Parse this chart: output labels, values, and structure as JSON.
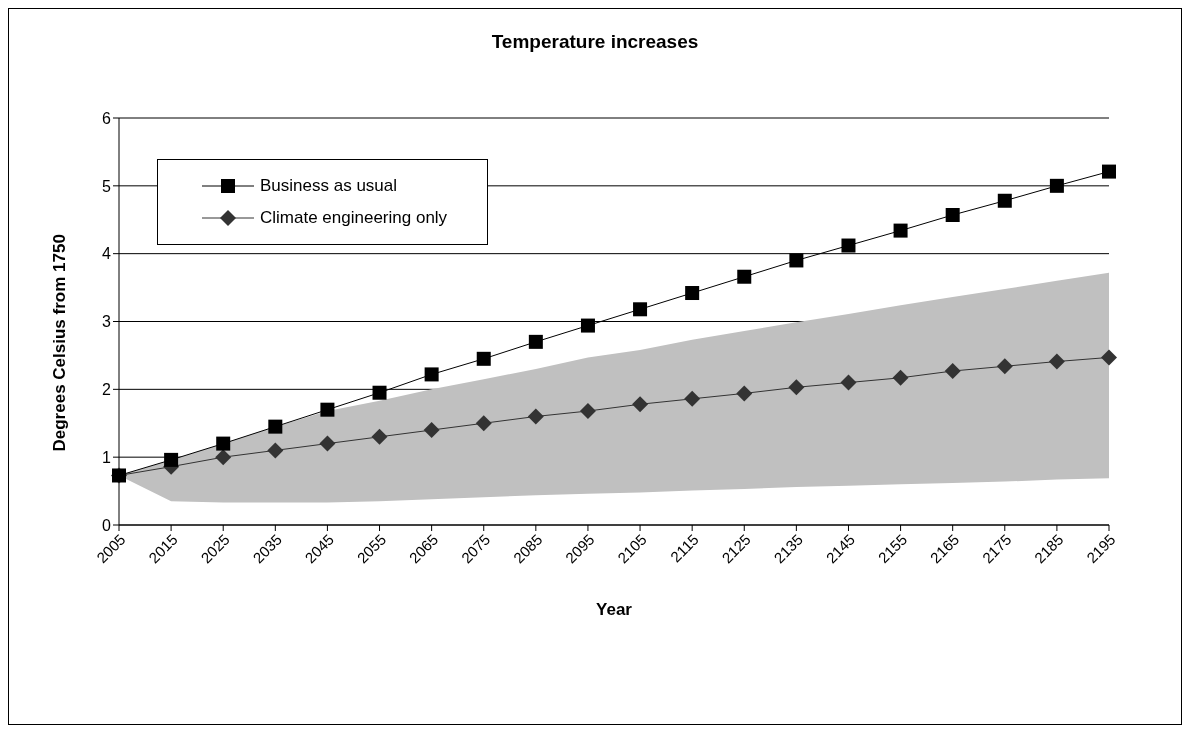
{
  "chart_data": {
    "type": "line",
    "title": "Temperature increases",
    "xlabel": "Year",
    "ylabel": "Degrees Celsius from 1750",
    "categories": [
      "2005",
      "2015",
      "2025",
      "2035",
      "2045",
      "2055",
      "2065",
      "2075",
      "2085",
      "2095",
      "2105",
      "2115",
      "2125",
      "2135",
      "2145",
      "2155",
      "2165",
      "2175",
      "2185",
      "2195"
    ],
    "series": [
      {
        "name": "Business as usual",
        "color": "#000000",
        "marker": "square",
        "values": [
          0.73,
          0.96,
          1.2,
          1.45,
          1.7,
          1.95,
          2.22,
          2.45,
          2.7,
          2.94,
          3.18,
          3.42,
          3.66,
          3.9,
          4.12,
          4.34,
          4.57,
          4.78,
          5.0,
          5.21
        ]
      },
      {
        "name": "Climate engineering only",
        "color": "#333333",
        "marker": "diamond",
        "values": [
          0.73,
          0.86,
          1.0,
          1.1,
          1.2,
          1.3,
          1.4,
          1.5,
          1.6,
          1.68,
          1.78,
          1.86,
          1.94,
          2.03,
          2.1,
          2.17,
          2.27,
          2.34,
          2.41,
          2.47
        ],
        "lower": [
          0.73,
          0.35,
          0.33,
          0.33,
          0.33,
          0.35,
          0.38,
          0.41,
          0.44,
          0.46,
          0.48,
          0.51,
          0.53,
          0.56,
          0.58,
          0.6,
          0.62,
          0.64,
          0.67,
          0.69
        ],
        "upper": [
          0.73,
          0.96,
          1.2,
          1.45,
          1.68,
          1.83,
          2.0,
          2.15,
          2.3,
          2.47,
          2.58,
          2.73,
          2.86,
          2.99,
          3.11,
          3.24,
          3.36,
          3.48,
          3.6,
          3.72
        ]
      }
    ],
    "ylim": [
      0,
      6
    ],
    "yticks": [
      0,
      1,
      2,
      3,
      4,
      5,
      6
    ],
    "grid": "y",
    "legend": "top left",
    "line_style": "solid"
  }
}
